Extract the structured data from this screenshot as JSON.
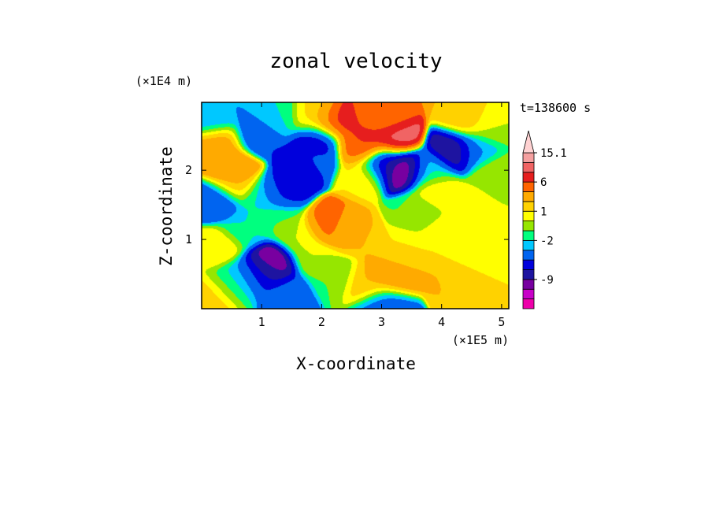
{
  "chart_data": {
    "type": "heatmap",
    "title": "zonal velocity",
    "xlabel": "X-coordinate",
    "ylabel": "Z-coordinate",
    "x_unit_label": "(×1E5 m)",
    "y_unit_label": "(×1E4 m)",
    "time_label": "t=138600 s",
    "xlim": [
      0,
      5.12
    ],
    "ylim": [
      0,
      2.98
    ],
    "x_ticks": [
      1,
      2,
      3,
      4,
      5
    ],
    "x_tick_labels": [
      "1",
      "2",
      "3",
      "4",
      "5"
    ],
    "y_ticks": [
      1,
      2
    ],
    "y_tick_labels": [
      "1",
      "2"
    ],
    "colorbar": {
      "levels": [
        "-13",
        "-11",
        "-9",
        "-7",
        "-5",
        "-3",
        "-2",
        "-1",
        "0",
        "1",
        "2",
        "4",
        "6",
        "8",
        "11",
        "15.1"
      ],
      "level_labels": [
        "15.1",
        "6",
        "1",
        "-2",
        "-9"
      ],
      "colors": [
        "#ee00aa",
        "#c800c8",
        "#7800a0",
        "#1e14a0",
        "#0000dc",
        "#0064f0",
        "#00c8ff",
        "#00ff7f",
        "#96e600",
        "#ffff00",
        "#ffd200",
        "#ffaa00",
        "#ff6400",
        "#e61e1e",
        "#f06464",
        "#f5a0a0",
        "#ffd2d2"
      ],
      "extend": "max"
    },
    "features": [
      {
        "x": 1.15,
        "z": 0.62,
        "value": -12
      },
      {
        "x": 1.05,
        "z": 0.52,
        "value": -5
      },
      {
        "x": 1.45,
        "z": 0.22,
        "value": -4
      },
      {
        "x": 0.7,
        "z": 0.45,
        "value": -3
      },
      {
        "x": 0.45,
        "z": 0.32,
        "value": -1
      },
      {
        "x": 1.85,
        "z": 0.75,
        "value": 0
      },
      {
        "x": 3.15,
        "z": 0.48,
        "value": 3
      },
      {
        "x": 2.75,
        "z": 0.35,
        "value": 2
      },
      {
        "x": 3.0,
        "z": 0.05,
        "value": -4
      },
      {
        "x": 3.35,
        "z": 0.85,
        "value": 1
      },
      {
        "x": 4.05,
        "z": 1.05,
        "value": 1
      },
      {
        "x": 4.6,
        "z": 0.8,
        "value": 0
      },
      {
        "x": 4.3,
        "z": 0.4,
        "value": 2
      },
      {
        "x": 2.5,
        "z": 1.1,
        "value": 2
      },
      {
        "x": 2.1,
        "z": 1.2,
        "value": 5
      },
      {
        "x": 3.6,
        "z": 1.4,
        "value": -1
      },
      {
        "x": 4.6,
        "z": 1.45,
        "value": 0
      },
      {
        "x": 0.3,
        "z": 0.9,
        "value": 1
      },
      {
        "x": 0.7,
        "z": 1.15,
        "value": -2
      },
      {
        "x": 0.25,
        "z": 1.55,
        "value": -5
      },
      {
        "x": 1.0,
        "z": 1.6,
        "value": -2
      },
      {
        "x": 1.35,
        "z": 1.68,
        "value": -6
      },
      {
        "x": 0.55,
        "z": 1.8,
        "value": 2
      },
      {
        "x": 0.5,
        "z": 2.05,
        "value": 4
      },
      {
        "x": 1.7,
        "z": 2.1,
        "value": -6
      },
      {
        "x": 1.9,
        "z": 2.2,
        "value": -4
      },
      {
        "x": 2.7,
        "z": 1.95,
        "value": 1
      },
      {
        "x": 2.6,
        "z": 2.35,
        "value": 4
      },
      {
        "x": 3.35,
        "z": 2.02,
        "value": -11
      },
      {
        "x": 3.0,
        "z": 2.12,
        "value": -7
      },
      {
        "x": 3.8,
        "z": 2.0,
        "value": -2
      },
      {
        "x": 4.6,
        "z": 2.3,
        "value": -3
      },
      {
        "x": 4.2,
        "z": 2.3,
        "value": -9
      },
      {
        "x": 4.9,
        "z": 1.95,
        "value": 0
      },
      {
        "x": 3.0,
        "z": 2.75,
        "value": 4
      },
      {
        "x": 3.2,
        "z": 2.45,
        "value": 9
      },
      {
        "x": 2.7,
        "z": 2.4,
        "value": 8
      },
      {
        "x": 4.4,
        "z": 2.7,
        "value": 2
      },
      {
        "x": 4.8,
        "z": 2.6,
        "value": 0
      },
      {
        "x": 0.9,
        "z": 2.5,
        "value": -5
      },
      {
        "x": 0.35,
        "z": 2.4,
        "value": 3
      },
      {
        "x": 0.25,
        "z": 2.75,
        "value": -3
      },
      {
        "x": 1.2,
        "z": 2.75,
        "value": -2
      },
      {
        "x": 1.9,
        "z": 2.75,
        "value": 1
      },
      {
        "x": 2.2,
        "z": 2.65,
        "value": 8
      },
      {
        "x": 2.0,
        "z": 2.45,
        "value": -8
      },
      {
        "x": 1.65,
        "z": 1.05,
        "value": 0
      },
      {
        "x": 1.3,
        "z": 1.3,
        "value": -1
      },
      {
        "x": 2.2,
        "z": 0.45,
        "value": -1
      },
      {
        "x": 0.15,
        "z": 0.15,
        "value": 2
      },
      {
        "x": 4.9,
        "z": 0.3,
        "value": 1
      },
      {
        "x": 3.9,
        "z": 1.7,
        "value": 1
      }
    ]
  }
}
